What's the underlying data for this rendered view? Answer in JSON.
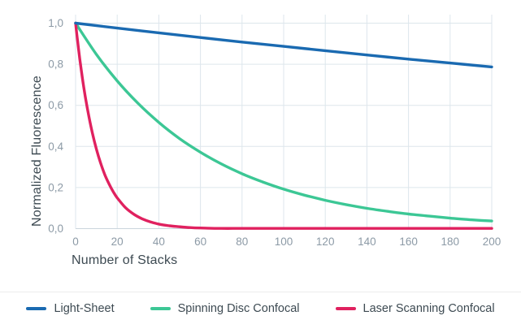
{
  "chart_data": {
    "type": "line",
    "title": "",
    "xlabel": "Number of Stacks",
    "ylabel": "Normalized Fluorescence",
    "xlim": [
      0,
      200
    ],
    "ylim": [
      0,
      1.04
    ],
    "grid": true,
    "legend_position": "bottom",
    "x_ticks": [
      0,
      20,
      40,
      60,
      80,
      100,
      120,
      140,
      160,
      180,
      200
    ],
    "x_tick_labels": [
      "0",
      "20",
      "40",
      "60",
      "80",
      "100",
      "120",
      "140",
      "160",
      "180",
      "200"
    ],
    "y_ticks": [
      0,
      0.2,
      0.4,
      0.6,
      0.8,
      1.0
    ],
    "y_tick_labels": [
      "0,0",
      "0,2",
      "0,4",
      "0,6",
      "0,8",
      "1,0"
    ],
    "series": [
      {
        "name": "Light-Sheet",
        "color": "#1a6ab1",
        "x": [
          0,
          20,
          40,
          60,
          80,
          100,
          120,
          140,
          160,
          180,
          200
        ],
        "values": [
          1.0,
          0.976,
          0.953,
          0.93,
          0.908,
          0.887,
          0.866,
          0.845,
          0.825,
          0.806,
          0.787
        ]
      },
      {
        "name": "Spinning Disc Confocal",
        "color": "#3cc795",
        "x": [
          0,
          10,
          20,
          30,
          40,
          50,
          60,
          70,
          80,
          90,
          100,
          110,
          120,
          130,
          140,
          150,
          160,
          170,
          180,
          190,
          200
        ],
        "values": [
          1.0,
          0.848,
          0.719,
          0.61,
          0.517,
          0.438,
          0.372,
          0.315,
          0.267,
          0.227,
          0.192,
          0.163,
          0.138,
          0.117,
          0.099,
          0.084,
          0.071,
          0.061,
          0.051,
          0.043,
          0.037
        ]
      },
      {
        "name": "Laser Scanning Confocal",
        "color": "#e0215f",
        "x": [
          0,
          1,
          2,
          3,
          4,
          5,
          6,
          8,
          10,
          12,
          14,
          16,
          18,
          20,
          24,
          28,
          32,
          36,
          40,
          45,
          50,
          55,
          60,
          70,
          80,
          100,
          120,
          140,
          160,
          180,
          200
        ],
        "values": [
          1.0,
          0.909,
          0.827,
          0.752,
          0.684,
          0.622,
          0.566,
          0.468,
          0.387,
          0.32,
          0.264,
          0.219,
          0.181,
          0.15,
          0.102,
          0.07,
          0.048,
          0.033,
          0.022,
          0.014,
          0.009,
          0.005,
          0.003,
          0.001,
          0.001,
          0.001,
          0.001,
          0.001,
          0.001,
          0.001,
          0.001
        ]
      }
    ]
  },
  "colors": {
    "background": "#ffffff",
    "grid": "#dde6ec",
    "axis": "#cbd5dd",
    "tick_text": "#8c9aa6",
    "label_text": "#3d4a52",
    "divider": "#ececec"
  }
}
